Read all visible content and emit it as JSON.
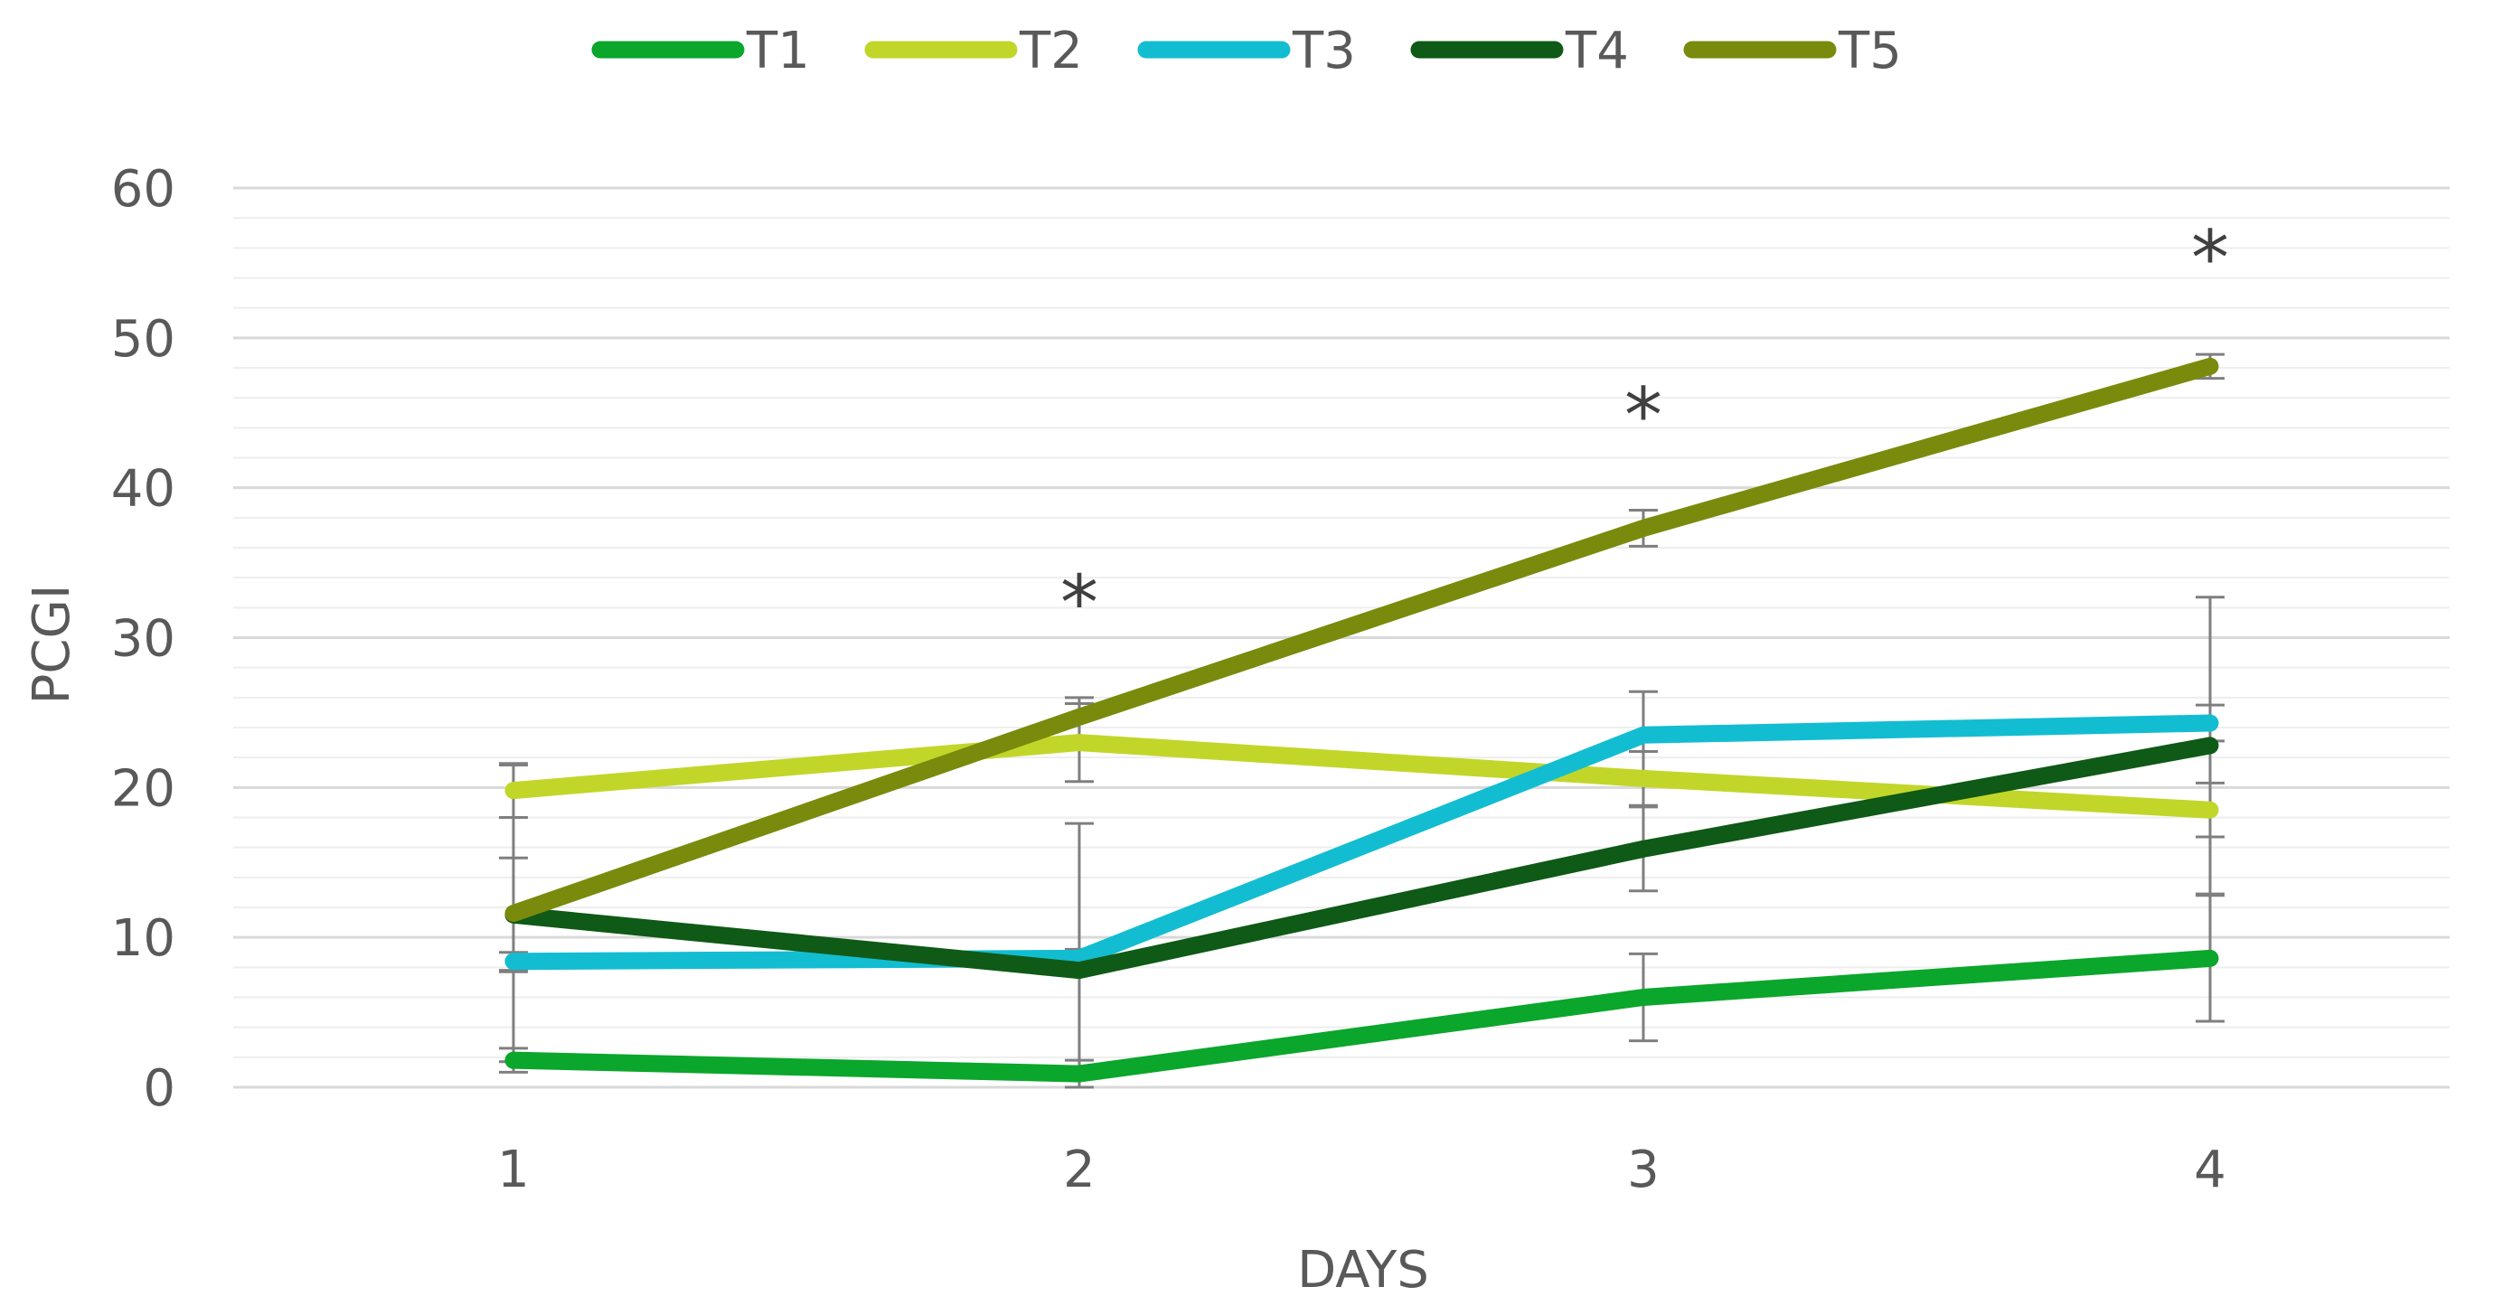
{
  "chart_data": {
    "type": "line",
    "title": "",
    "xlabel": "DAYS",
    "ylabel": "PCGI",
    "x": [
      1,
      2,
      3,
      4
    ],
    "x_tick_labels": [
      "1",
      "2",
      "3",
      "4"
    ],
    "ylim": [
      0,
      60
    ],
    "y_ticks": [
      0,
      10,
      20,
      30,
      40,
      50,
      60
    ],
    "y_tick_labels": [
      "0",
      "10",
      "20",
      "30",
      "40",
      "50",
      "60"
    ],
    "grid": "horizontal",
    "legend_position": "top",
    "series": [
      {
        "name": "T1",
        "color": "#0ba62c",
        "values": [
          1.8,
          0.9,
          6.0,
          8.6
        ],
        "error": [
          0.8,
          0.9,
          2.9,
          4.2
        ]
      },
      {
        "name": "T2",
        "color": "#c2d62a",
        "values": [
          19.8,
          23.0,
          20.6,
          18.5
        ],
        "error": [
          1.8,
          2.6,
          1.8,
          1.8
        ]
      },
      {
        "name": "T3",
        "color": "#13bdd1",
        "values": [
          8.4,
          8.6,
          23.5,
          24.3
        ],
        "error": [
          0.6,
          0.6,
          2.9,
          1.2
        ]
      },
      {
        "name": "T4",
        "color": "#0e5a16",
        "values": [
          11.5,
          7.8,
          15.9,
          22.8
        ],
        "error": [
          3.8,
          9.8,
          2.8,
          9.9
        ]
      },
      {
        "name": "T5",
        "color": "#7a8a0d",
        "values": [
          11.6,
          24.7,
          37.3,
          48.1
        ],
        "error": [
          9.9,
          1.3,
          1.2,
          0.8
        ]
      }
    ],
    "annotations": [
      {
        "x": 2,
        "y": 33,
        "text": "*"
      },
      {
        "x": 3,
        "y": 45.5,
        "text": "*"
      },
      {
        "x": 4,
        "y": 56,
        "text": "*"
      }
    ]
  }
}
